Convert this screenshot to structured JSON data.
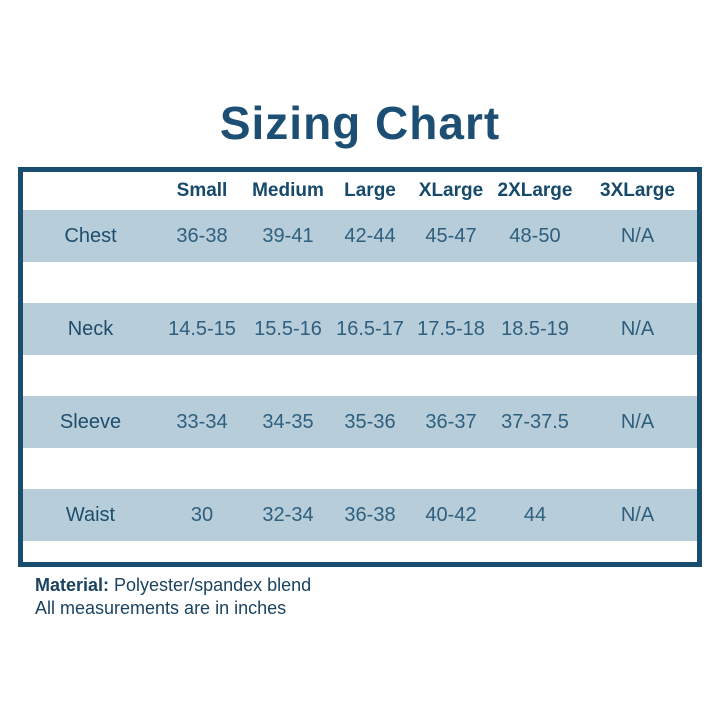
{
  "title": "Sizing Chart",
  "chart_data": {
    "type": "table",
    "title": "Sizing Chart",
    "columns": [
      "Small",
      "Medium",
      "Large",
      "XLarge",
      "2XLarge",
      "3XLarge"
    ],
    "row_labels": [
      "Chest",
      "Neck",
      "Sleeve",
      "Waist"
    ],
    "rows": [
      [
        "36-38",
        "39-41",
        "42-44",
        "45-47",
        "48-50",
        "N/A"
      ],
      [
        "14.5-15",
        "15.5-16",
        "16.5-17",
        "17.5-18",
        "18.5-19",
        "N/A"
      ],
      [
        "33-34",
        "34-35",
        "35-36",
        "36-37",
        "37-37.5",
        "N/A"
      ],
      [
        "30",
        "32-34",
        "36-38",
        "40-42",
        "44",
        "N/A"
      ]
    ],
    "layout": {
      "stripe_style": "alternating light-blue bands with white gaps",
      "border": "solid navy frame"
    }
  },
  "colors": {
    "navy_border": "#1a4e70",
    "title_text": "#1d4f74",
    "band_background": "#b7cdd9",
    "cell_text": "#2e5f7e"
  },
  "footer": {
    "material_label": "Material:",
    "material_value": " Polyester/spandex blend",
    "note": "All measurements are in inches"
  }
}
